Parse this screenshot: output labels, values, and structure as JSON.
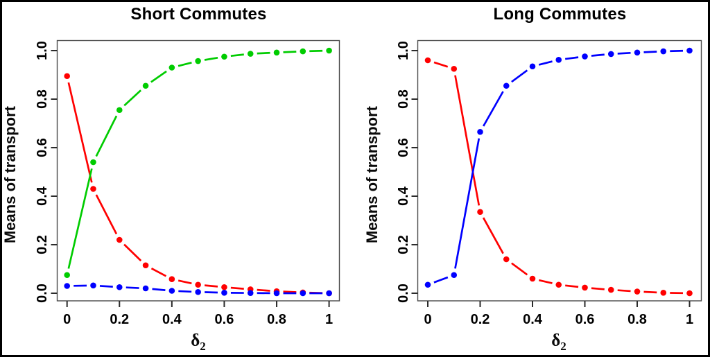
{
  "figure": {
    "background": "#FFFFFF",
    "border_color": "#000000",
    "axis_box_color": "#4A4A4A",
    "tick_color": "#2B2B2B",
    "text_color": "#000000"
  },
  "chart_data": [
    {
      "type": "line",
      "title": "Short Commutes",
      "xlabel": "δ",
      "xlabel_sub": "2",
      "ylabel": "Means of transport",
      "xlim": [
        0,
        1
      ],
      "ylim": [
        0,
        1
      ],
      "grid": false,
      "legend": "none",
      "marker": "filled-circle",
      "line_style": "segments-with-gaps-at-points",
      "x": [
        0,
        0.1,
        0.2,
        0.3,
        0.4,
        0.5,
        0.6,
        0.7,
        0.8,
        0.9,
        1.0
      ],
      "xticks": [
        0,
        0.2,
        0.4,
        0.6,
        0.8,
        1
      ],
      "xtick_labels": [
        "0",
        "0.2",
        "0.4",
        "0.6",
        "0.8",
        "1"
      ],
      "yticks": [
        0.0,
        0.2,
        0.4,
        0.6,
        0.8,
        1.0
      ],
      "ytick_labels": [
        "0.0",
        "0.2",
        "0.4",
        "0.6",
        "0.8",
        "1.0"
      ],
      "series": [
        {
          "name": "red-series",
          "color": "#FF0000",
          "values": [
            0.895,
            0.43,
            0.22,
            0.115,
            0.058,
            0.035,
            0.025,
            0.016,
            0.008,
            0.003,
            0.0
          ]
        },
        {
          "name": "green-series",
          "color": "#00CC00",
          "values": [
            0.075,
            0.54,
            0.755,
            0.855,
            0.93,
            0.957,
            0.975,
            0.987,
            0.992,
            0.997,
            1.0
          ]
        },
        {
          "name": "blue-series",
          "color": "#0000FF",
          "values": [
            0.03,
            0.032,
            0.025,
            0.02,
            0.01,
            0.005,
            0.002,
            0.001,
            0.0,
            0.0,
            0.0
          ]
        }
      ]
    },
    {
      "type": "line",
      "title": "Long Commutes",
      "xlabel": "δ",
      "xlabel_sub": "2",
      "ylabel": "Means of transport",
      "xlim": [
        0,
        1
      ],
      "ylim": [
        0,
        1
      ],
      "grid": false,
      "legend": "none",
      "marker": "filled-circle",
      "line_style": "segments-with-gaps-at-points",
      "x": [
        0,
        0.1,
        0.2,
        0.3,
        0.4,
        0.5,
        0.6,
        0.7,
        0.8,
        0.9,
        1.0
      ],
      "xticks": [
        0,
        0.2,
        0.4,
        0.6,
        0.8,
        1
      ],
      "xtick_labels": [
        "0",
        "0.2",
        "0.4",
        "0.6",
        "0.8",
        "1"
      ],
      "yticks": [
        0.0,
        0.2,
        0.4,
        0.6,
        0.8,
        1.0
      ],
      "ytick_labels": [
        "0.0",
        "0.2",
        "0.4",
        "0.6",
        "0.8",
        "1.0"
      ],
      "series": [
        {
          "name": "red-series",
          "color": "#FF0000",
          "values": [
            0.96,
            0.925,
            0.335,
            0.14,
            0.06,
            0.035,
            0.023,
            0.014,
            0.007,
            0.002,
            0.0
          ]
        },
        {
          "name": "blue-series",
          "color": "#0000FF",
          "values": [
            0.035,
            0.075,
            0.665,
            0.855,
            0.935,
            0.962,
            0.976,
            0.986,
            0.992,
            0.997,
            1.0
          ]
        }
      ]
    }
  ]
}
